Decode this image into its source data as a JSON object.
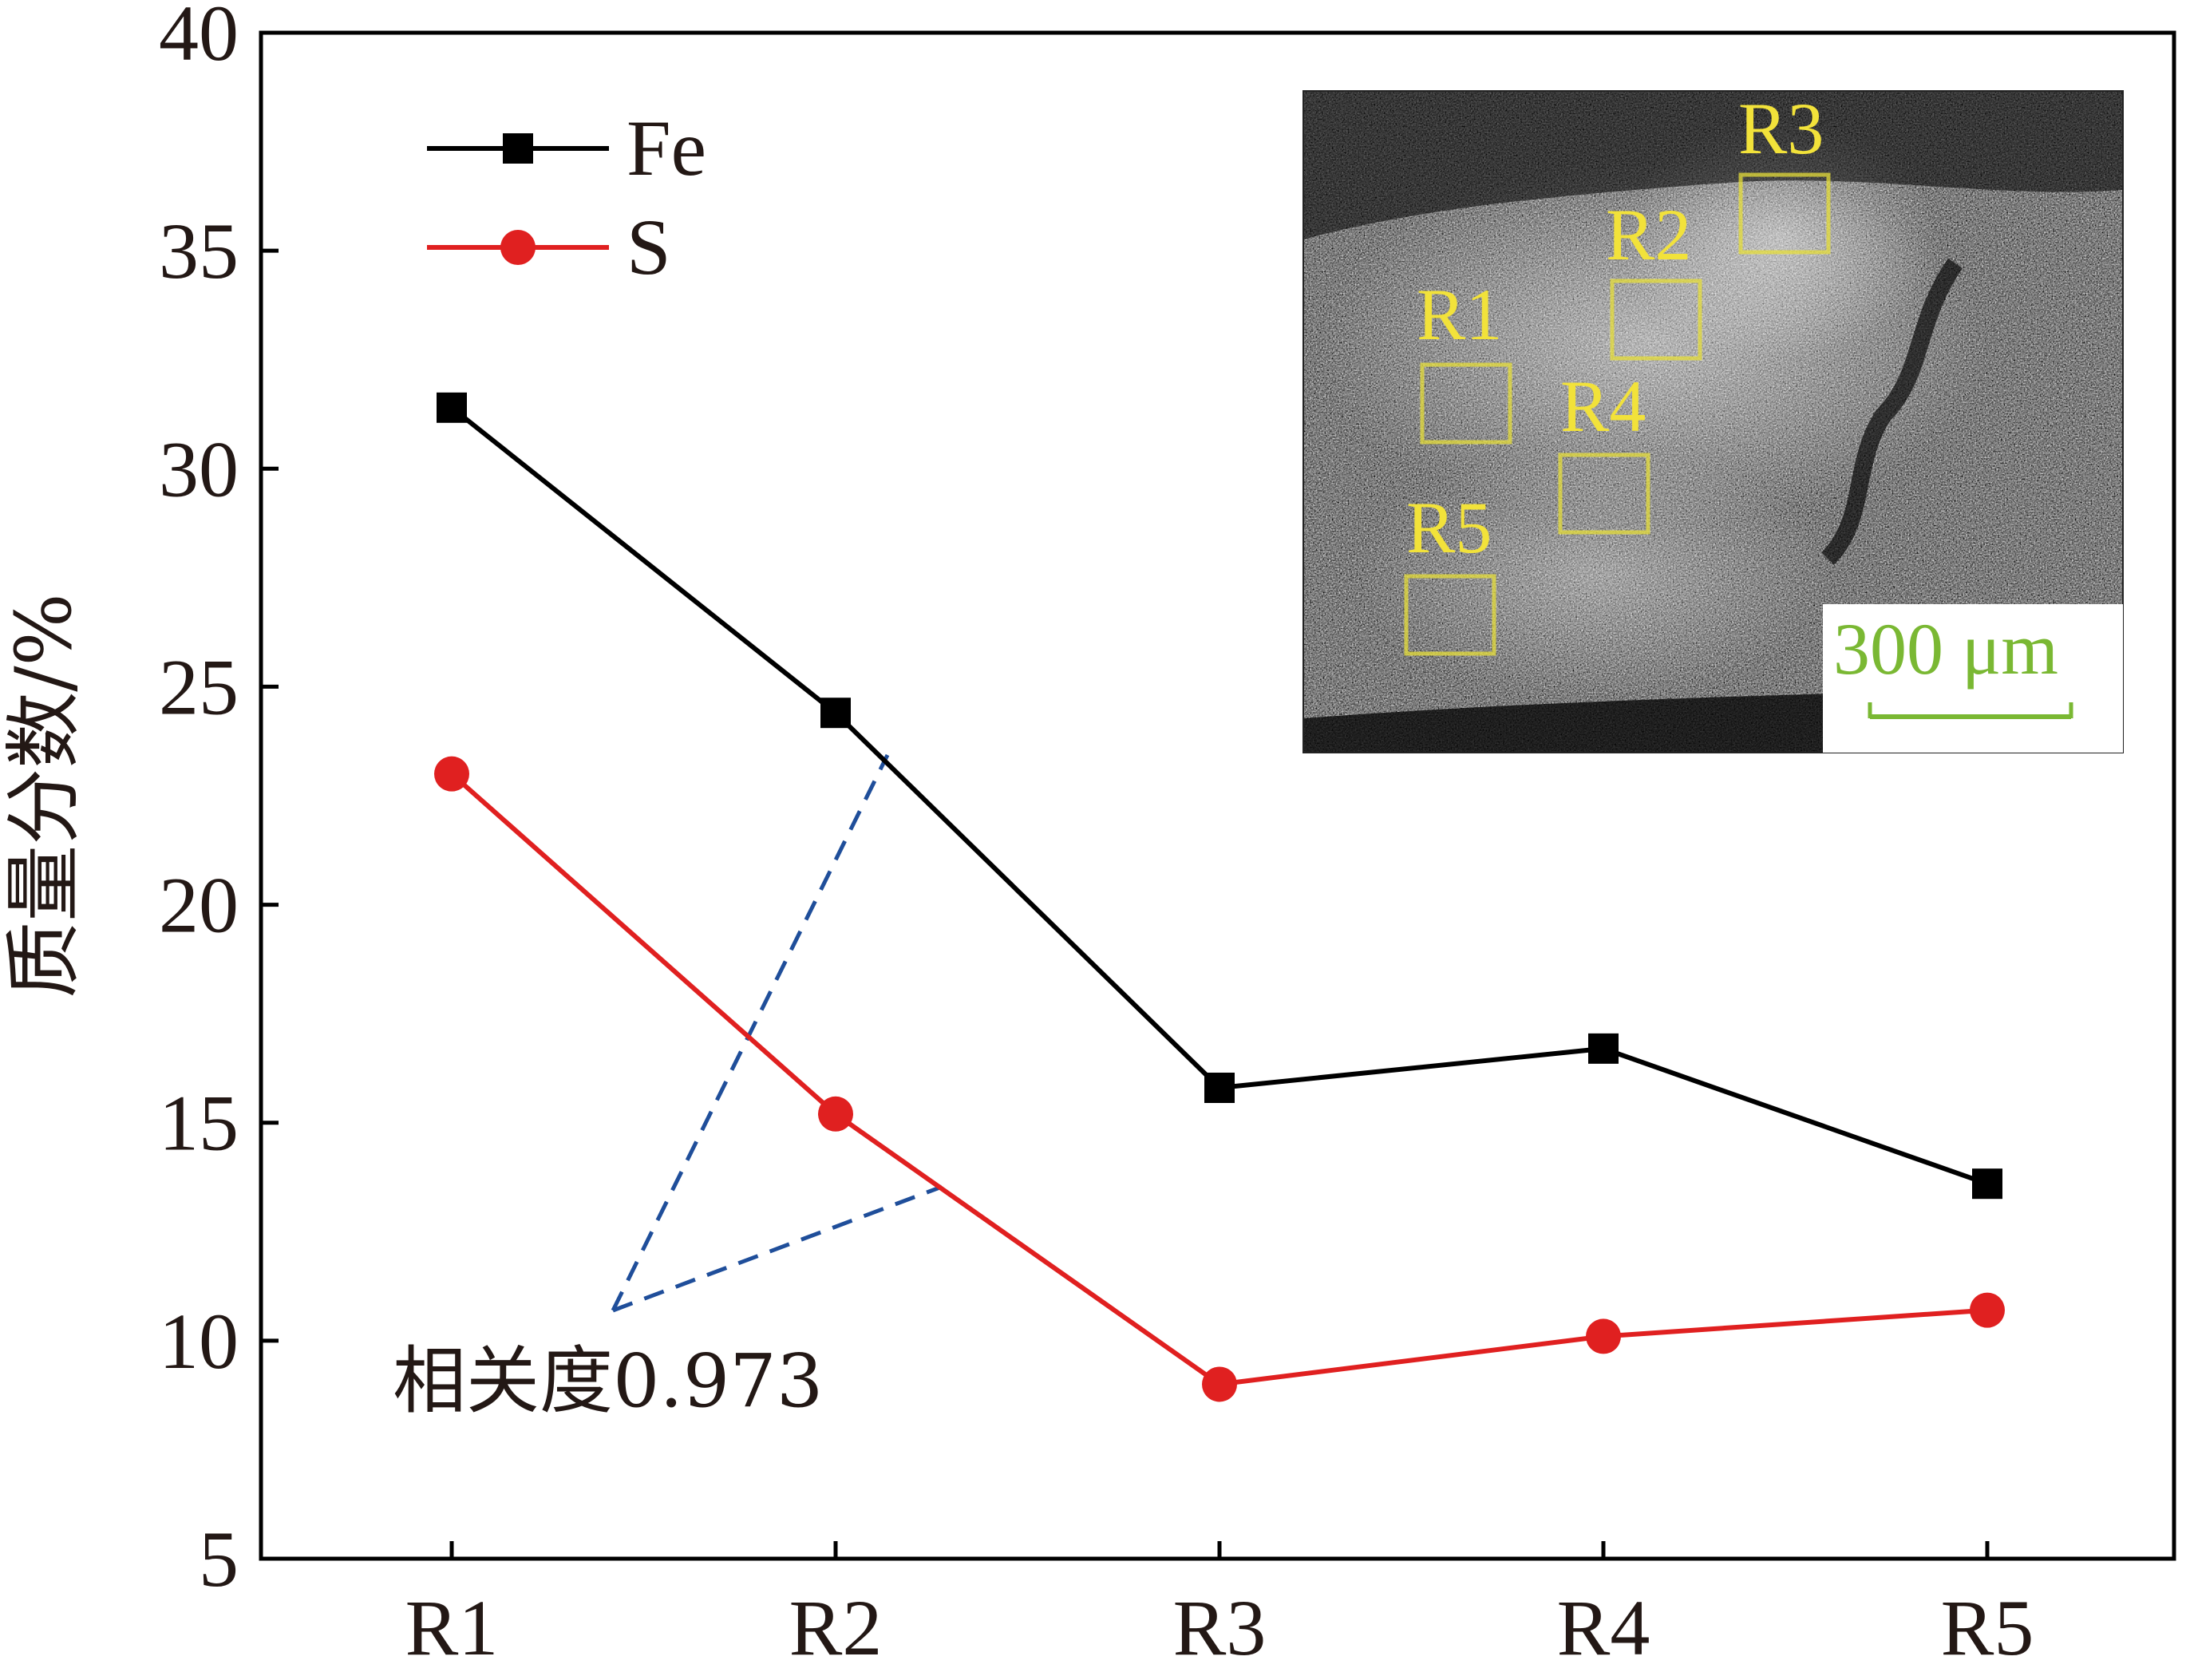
{
  "chart_data": {
    "type": "line",
    "categories": [
      "R1",
      "R2",
      "R3",
      "R4",
      "R5"
    ],
    "series": [
      {
        "name": "Fe",
        "marker": "square",
        "color": "#000000",
        "values": [
          31.4,
          24.4,
          15.8,
          16.7,
          13.6
        ]
      },
      {
        "name": "S",
        "marker": "circle",
        "color": "#e02020",
        "values": [
          23.0,
          15.2,
          9.0,
          10.1,
          10.7
        ]
      }
    ],
    "title": "",
    "xlabel": "",
    "ylabel": "质量分数/%",
    "ylim": [
      5,
      40
    ],
    "yticks": [
      "5",
      "10",
      "15",
      "20",
      "25",
      "30",
      "35",
      "40"
    ],
    "grid": false,
    "legend_position": "top-left",
    "annotation": {
      "text": "相关度0.973",
      "color": "#1f4e9a",
      "style": "dashed"
    },
    "inset": {
      "region_labels": [
        "R1",
        "R2",
        "R3",
        "R4",
        "R5"
      ],
      "scale_bar": "300 μm",
      "box_color": "#e6dd3a",
      "scale_color": "#7ab833"
    }
  }
}
